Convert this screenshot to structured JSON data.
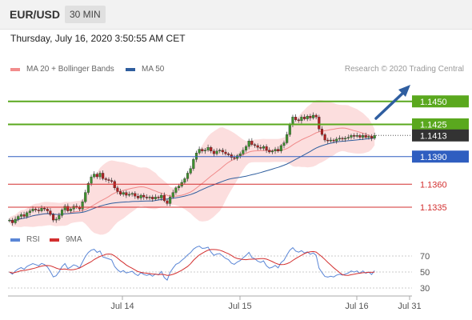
{
  "header": {
    "symbol": "EUR/USD",
    "timeframe": "30 MIN"
  },
  "datetime": "Thursday, July 16, 2020 3:50:55 AM CET",
  "legend": {
    "bollinger": {
      "label": "MA 20 + Bollinger Bands",
      "color": "#f28c8c"
    },
    "ma50": {
      "label": "MA 50",
      "color": "#2f5e9e"
    }
  },
  "research": "Research © 2020 Trading Central",
  "rsi_legend": {
    "rsi": {
      "label": "RSI",
      "color": "#5a86d6"
    },
    "ma9": {
      "label": "9MA",
      "color": "#d32f2f"
    }
  },
  "levels": [
    {
      "value": 1.145,
      "label": "1.1450",
      "kind": "resistance",
      "color": "#5aa81e"
    },
    {
      "value": 1.1425,
      "label": "1.1425",
      "kind": "resistance",
      "color": "#5aa81e"
    },
    {
      "value": 1.1413,
      "label": "1.1413",
      "kind": "current",
      "color": "#333333"
    },
    {
      "value": 1.139,
      "label": "1.1390",
      "kind": "pivot",
      "color": "#2f5ec0"
    },
    {
      "value": 1.136,
      "label": "1.1360",
      "kind": "support",
      "color": "#d32f2f"
    },
    {
      "value": 1.1335,
      "label": "1.1335",
      "kind": "support",
      "color": "#d32f2f"
    }
  ],
  "rsi_ticks": [
    "70",
    "50",
    "30"
  ],
  "x_ticks": [
    "Jul 14",
    "Jul 15",
    "Jul 16",
    "Jul 31"
  ],
  "chart_data": {
    "type": "candlestick",
    "title": "EUR/USD",
    "ylim": [
      1.1315,
      1.1475
    ],
    "close_series": [
      1.1321,
      1.1318,
      1.1322,
      1.1325,
      1.1327,
      1.1325,
      1.1329,
      1.1331,
      1.1333,
      1.1332,
      1.1331,
      1.1334,
      1.1333,
      1.1331,
      1.1327,
      1.1321,
      1.1322,
      1.1326,
      1.1332,
      1.1336,
      1.1331,
      1.1333,
      1.1336,
      1.1335,
      1.1333,
      1.1341,
      1.1351,
      1.1361,
      1.1368,
      1.1371,
      1.1368,
      1.1372,
      1.1366,
      1.1365,
      1.1364,
      1.1363,
      1.1356,
      1.1352,
      1.1349,
      1.1351,
      1.1348,
      1.1349,
      1.135,
      1.1347,
      1.1345,
      1.1348,
      1.1346,
      1.1345,
      1.1346,
      1.1344,
      1.1346,
      1.1345,
      1.1348,
      1.1342,
      1.1339,
      1.1346,
      1.1351,
      1.1356,
      1.1358,
      1.1362,
      1.1366,
      1.1372,
      1.1377,
      1.1387,
      1.1394,
      1.1398,
      1.1396,
      1.1397,
      1.14,
      1.1396,
      1.1393,
      1.1396,
      1.1397,
      1.1395,
      1.1393,
      1.1392,
      1.1389,
      1.1388,
      1.1391,
      1.1393,
      1.1397,
      1.1401,
      1.1407,
      1.1403,
      1.1402,
      1.14,
      1.1399,
      1.1401,
      1.1397,
      1.1395,
      1.1396,
      1.1398,
      1.1396,
      1.1402,
      1.1405,
      1.1414,
      1.1425,
      1.1433,
      1.143,
      1.1429,
      1.1433,
      1.1431,
      1.1434,
      1.1432,
      1.1435,
      1.1433,
      1.142,
      1.1414,
      1.1408,
      1.1407,
      1.1408,
      1.1407,
      1.1409,
      1.141,
      1.1409,
      1.141,
      1.1411,
      1.1413,
      1.1412,
      1.1413,
      1.1411,
      1.1413,
      1.1411,
      1.1412,
      1.141,
      1.1413
    ],
    "rsi_ylim": [
      20,
      80
    ],
    "rsi_levels": [
      70,
      50,
      30
    ],
    "x_labels": [
      "Jul 14",
      "Jul 15",
      "Jul 16",
      "Jul 31"
    ]
  }
}
